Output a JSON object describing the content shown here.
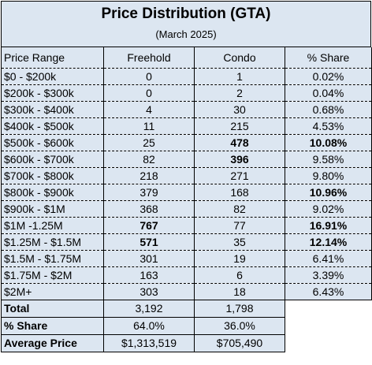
{
  "title": "Price Distribution (GTA)",
  "subtitle": "(March 2025)",
  "columns": [
    "Price Range",
    "Freehold",
    "Condo",
    "% Share"
  ],
  "rows": [
    {
      "range": "$0 - $200k",
      "freehold": "0",
      "condo": "1",
      "share": "0.02%"
    },
    {
      "range": "$200k - $300k",
      "freehold": "0",
      "condo": "2",
      "share": "0.04%"
    },
    {
      "range": "$300k - $400k",
      "freehold": "4",
      "condo": "30",
      "share": "0.68%"
    },
    {
      "range": "$400k - $500k",
      "freehold": "11",
      "condo": "215",
      "share": "4.53%"
    },
    {
      "range": "$500k - $600k",
      "freehold": "25",
      "condo": "478",
      "share": "10.08%",
      "bold": [
        "condo",
        "share"
      ]
    },
    {
      "range": "$600k - $700k",
      "freehold": "82",
      "condo": "396",
      "share": "9.58%",
      "bold": [
        "condo"
      ]
    },
    {
      "range": "$700k - $800k",
      "freehold": "218",
      "condo": "271",
      "share": "9.80%"
    },
    {
      "range": "$800k - $900k",
      "freehold": "379",
      "condo": "168",
      "share": "10.96%",
      "bold": [
        "share"
      ]
    },
    {
      "range": "$900k - $1M",
      "freehold": "368",
      "condo": "82",
      "share": "9.02%"
    },
    {
      "range": "$1M -1.25M",
      "freehold": "767",
      "condo": "77",
      "share": "16.91%",
      "bold": [
        "freehold",
        "share"
      ]
    },
    {
      "range": "$1.25M - $1.5M",
      "freehold": "571",
      "condo": "35",
      "share": "12.14%",
      "bold": [
        "freehold",
        "share"
      ]
    },
    {
      "range": "$1.5M - $1.75M",
      "freehold": "301",
      "condo": "19",
      "share": "6.41%"
    },
    {
      "range": "$1.75M - $2M",
      "freehold": "163",
      "condo": "6",
      "share": "3.39%"
    },
    {
      "range": "$2M+",
      "freehold": "303",
      "condo": "18",
      "share": "6.43%"
    }
  ],
  "summary": [
    {
      "label": "Total",
      "freehold": "3,192",
      "condo": "1,798"
    },
    {
      "label": "% Share",
      "freehold": "64.0%",
      "condo": "36.0%"
    },
    {
      "label": "Average Price",
      "freehold": "$1,313,519",
      "condo": "$705,490"
    }
  ]
}
